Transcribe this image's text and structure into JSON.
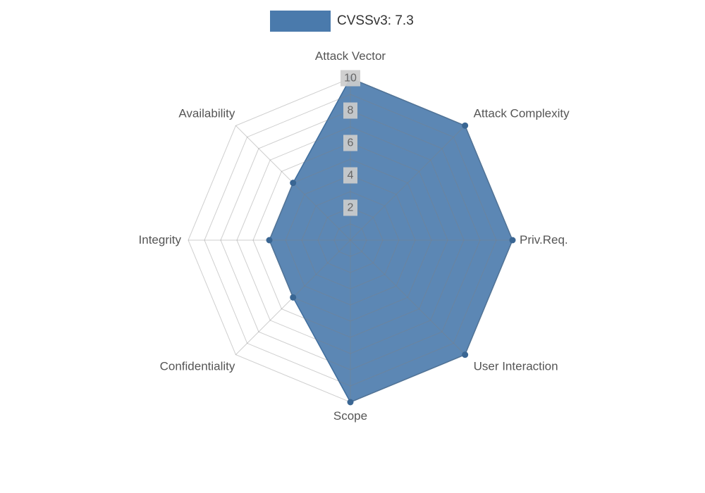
{
  "legend": {
    "label": "CVSSv3: 7.3"
  },
  "chart_data": {
    "type": "radar",
    "title": "CVSSv3: 7.3",
    "categories": [
      "Attack Vector",
      "Attack Complexity",
      "Priv.Req.",
      "User Interaction",
      "Scope",
      "Confidentiality",
      "Integrity",
      "Availability"
    ],
    "series": [
      {
        "name": "CVSSv3: 7.3",
        "values": [
          10,
          10,
          10,
          10,
          10,
          5,
          5,
          5
        ]
      }
    ],
    "axis": {
      "min": 0,
      "max": 10,
      "ticks": [
        2,
        4,
        6,
        8,
        10
      ],
      "rings_every": 1,
      "grid": true
    },
    "legend_position": "top",
    "colors": {
      "fill": "#4a7aac",
      "fill_opacity": "0.9",
      "stroke": "#3f6d9c",
      "dot": "#3a6693",
      "grid": "#808080",
      "grid_opacity": "0.38",
      "tick_bg": "#cccccc",
      "tick_text": "#666666",
      "label_text": "#555555",
      "legend_text": "#333333"
    }
  }
}
